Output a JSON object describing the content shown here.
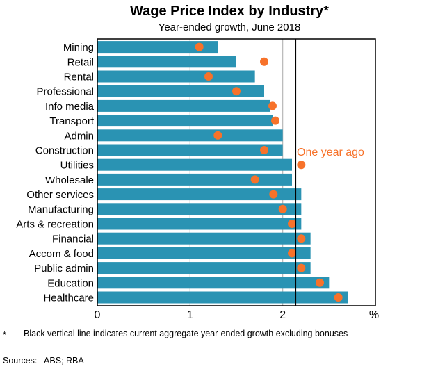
{
  "chart_data": {
    "type": "bar",
    "title": "Wage Price Index by Industry*",
    "subtitle": "Year-ended growth, June 2018",
    "unit_label": "%",
    "xlim": [
      0,
      3
    ],
    "xticks": [
      "0",
      "1",
      "2"
    ],
    "grid": true,
    "categories": [
      "Mining",
      "Retail",
      "Rental",
      "Professional",
      "Info media",
      "Transport",
      "Admin",
      "Construction",
      "Utilities",
      "Wholesale",
      "Other services",
      "Manufacturing",
      "Arts & recreation",
      "Financial",
      "Accom & food",
      "Public admin",
      "Education",
      "Healthcare"
    ],
    "series": [
      {
        "name": "June 2018",
        "type": "bar",
        "color": "#2a93b3",
        "values": [
          1.3,
          1.5,
          1.7,
          1.8,
          1.86,
          1.89,
          2.0,
          2.0,
          2.1,
          2.1,
          2.2,
          2.2,
          2.2,
          2.3,
          2.3,
          2.3,
          2.5,
          2.7
        ]
      },
      {
        "name": "One year ago",
        "type": "dot",
        "color": "#f7722a",
        "values": [
          1.1,
          1.8,
          1.2,
          1.5,
          1.89,
          1.92,
          1.3,
          1.8,
          2.2,
          1.7,
          1.9,
          2.0,
          2.1,
          2.2,
          2.1,
          2.2,
          2.4,
          2.6
        ]
      }
    ],
    "reference_line": {
      "value": 2.14,
      "color": "#000000"
    },
    "annotation": "One year ago",
    "footnote": "Black vertical line indicates current aggregate year-ended growth excluding bonuses",
    "footnote_marker": "*",
    "sources": "Sources:   ABS; RBA"
  }
}
